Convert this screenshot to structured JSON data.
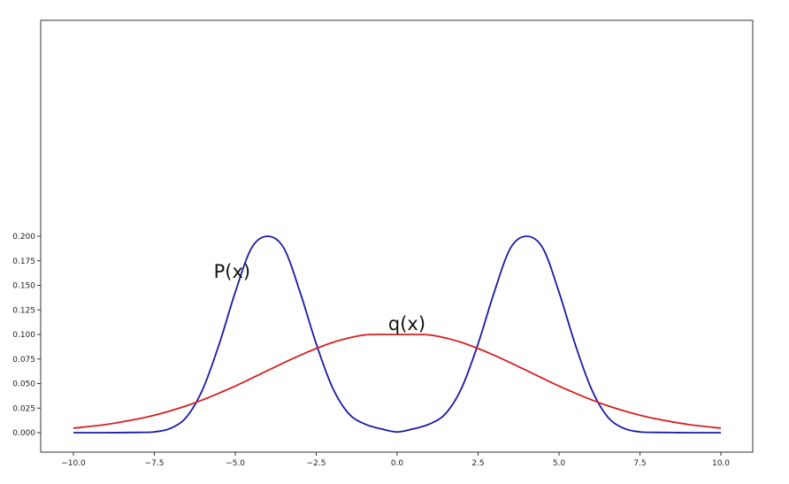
{
  "chart_data": {
    "type": "line",
    "title": "",
    "xlabel": "",
    "ylabel": "",
    "xlim": [
      -10.5,
      10.5
    ],
    "ylim": [
      -0.01,
      0.21
    ],
    "x_ticks": [
      -10.0,
      -7.5,
      -5.0,
      -2.5,
      0.0,
      2.5,
      5.0,
      7.5,
      10.0
    ],
    "x_tick_labels": [
      "−10.0",
      "−7.5",
      "−5.0",
      "−2.5",
      "0.0",
      "2.5",
      "5.0",
      "7.5",
      "10.0"
    ],
    "y_ticks": [
      0.0,
      0.025,
      0.05,
      0.075,
      0.1,
      0.125,
      0.15,
      0.175,
      0.2
    ],
    "y_tick_labels": [
      "0.000",
      "0.025",
      "0.050",
      "0.075",
      "0.100",
      "0.125",
      "0.150",
      "0.175",
      "0.200"
    ],
    "grid": false,
    "legend": "none",
    "series": [
      {
        "color": "#1a1aa6",
        "x": [
          -10.0,
          -9.0,
          -8.0,
          -7.5,
          -7.0,
          -6.5,
          -6.0,
          -5.5,
          -5.0,
          -4.5,
          -4.0,
          -3.5,
          -3.0,
          -2.5,
          -2.0,
          -1.5,
          -1.0,
          -0.5,
          0.0,
          0.5,
          1.0,
          1.5,
          2.0,
          2.5,
          3.0,
          3.5,
          4.0,
          4.5,
          5.0,
          5.5,
          6.0,
          6.5,
          7.0,
          7.5,
          8.0,
          9.0,
          10.0
        ],
        "y": [
          0.0,
          0.0,
          0.0003,
          0.0008,
          0.0044,
          0.0162,
          0.0446,
          0.0899,
          0.1431,
          0.1879,
          0.2,
          0.1879,
          0.1432,
          0.0905,
          0.0461,
          0.0195,
          0.0088,
          0.0039,
          0.0007,
          0.0039,
          0.0088,
          0.0195,
          0.0461,
          0.0905,
          0.1432,
          0.1879,
          0.2,
          0.1879,
          0.1431,
          0.0899,
          0.0446,
          0.0162,
          0.0044,
          0.0008,
          0.0003,
          0.0,
          0.0
        ]
      },
      {
        "color": "#d42020",
        "x": [
          -10.0,
          -9.0,
          -8.0,
          -7.5,
          -7.0,
          -6.5,
          -6.0,
          -5.5,
          -5.0,
          -4.5,
          -4.0,
          -3.5,
          -3.0,
          -2.5,
          -2.0,
          -1.5,
          -1.0,
          -0.5,
          0.0,
          0.5,
          1.0,
          1.5,
          2.0,
          2.5,
          3.0,
          3.5,
          4.0,
          4.5,
          5.0,
          5.5,
          6.0,
          6.5,
          7.0,
          7.5,
          8.0,
          9.0,
          10.0
        ],
        "y": [
          0.0046,
          0.0083,
          0.0141,
          0.0178,
          0.0223,
          0.0275,
          0.0335,
          0.0403,
          0.0475,
          0.0553,
          0.0633,
          0.0712,
          0.0788,
          0.0857,
          0.0918,
          0.0964,
          0.0995,
          0.1,
          0.1,
          0.1,
          0.0995,
          0.0964,
          0.0918,
          0.0857,
          0.0788,
          0.0712,
          0.0633,
          0.0553,
          0.0475,
          0.0403,
          0.0335,
          0.0275,
          0.0223,
          0.0178,
          0.0141,
          0.0083,
          0.0046
        ]
      }
    ],
    "annotations": [
      {
        "text": "P(x)",
        "x": -5.1,
        "y": 0.1575
      },
      {
        "text": "q(x)",
        "x": 0.3,
        "y": 0.1045
      }
    ]
  }
}
